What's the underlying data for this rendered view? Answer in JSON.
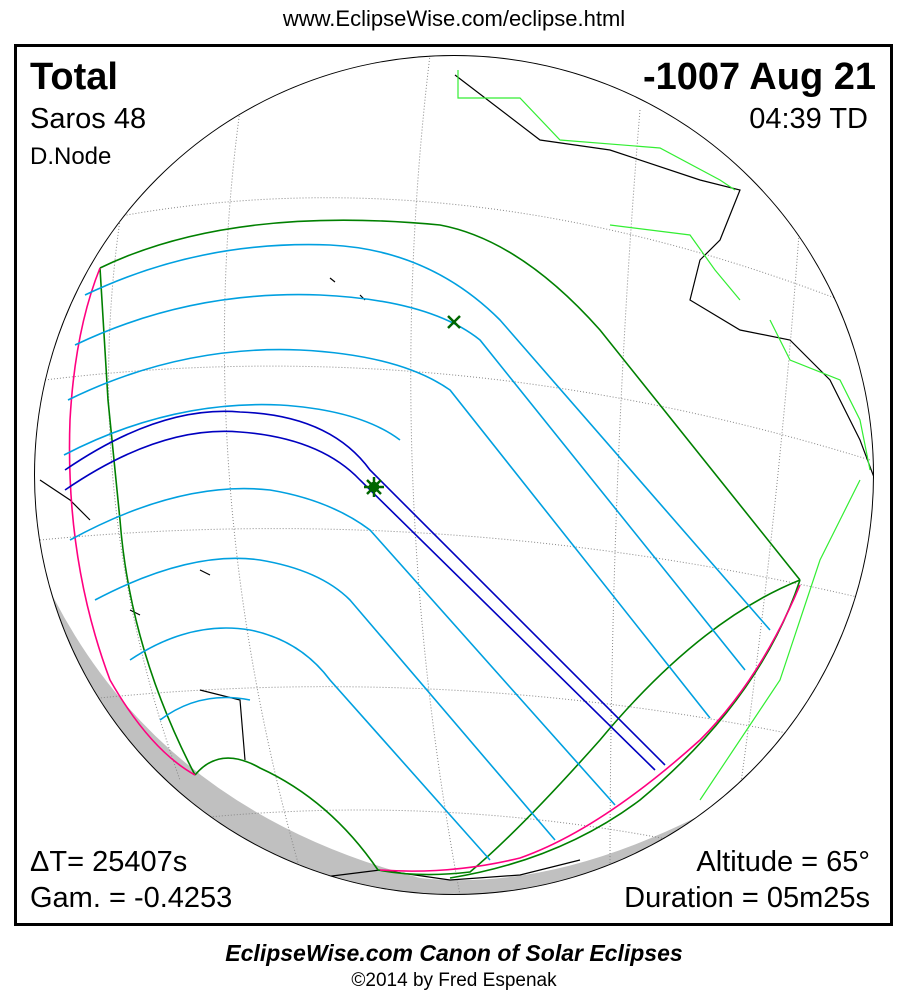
{
  "header": {
    "url": "www.EclipseWise.com/eclipse.html"
  },
  "eclipse": {
    "type": "Total",
    "date": "-1007 Aug 21",
    "saros": "Saros  48",
    "time": "04:39 TD",
    "node": "D.Node",
    "delta_t": "ΔT=  25407s",
    "gamma": "Gam. = -0.4253",
    "altitude": "Altitude = 65°",
    "duration": "Duration = 05m25s"
  },
  "footer": {
    "title": "EclipseWise.com Canon of Solar Eclipses",
    "copyright": "©2014 by Fred Espenak"
  },
  "colors": {
    "penumbral_limit": "#008000",
    "partial_lines": "#00a0e0",
    "central_path": "#0000c0",
    "rise_set": "#ff0080",
    "coastline_americas": "#33ee33",
    "night": "#c0c0c0"
  },
  "icons": [
    "greatest-eclipse-star-icon",
    "greatest-duration-x-icon"
  ]
}
